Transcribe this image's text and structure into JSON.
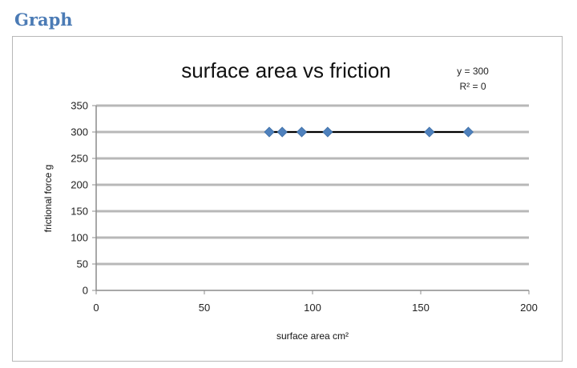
{
  "page": {
    "heading": "Graph"
  },
  "chart_data": {
    "type": "scatter",
    "title": "surface area vs friction",
    "xlabel": "surface area cm²",
    "ylabel": "frictional force g",
    "xlim": [
      0,
      200
    ],
    "ylim": [
      0,
      350
    ],
    "xticks": [
      0,
      50,
      100,
      150,
      200
    ],
    "yticks": [
      0,
      50,
      100,
      150,
      200,
      250,
      300,
      350
    ],
    "grid": "horizontal",
    "series": [
      {
        "x": [
          80,
          86,
          95,
          107,
          154,
          172
        ],
        "y": [
          300,
          300,
          300,
          300,
          300,
          300
        ],
        "color": "#4f81bd",
        "marker": "diamond"
      }
    ],
    "trendline": {
      "type": "linear",
      "x_range": [
        80,
        172
      ],
      "y": 300,
      "color": "#000000",
      "equation": "y = 300",
      "r_squared": "R² = 0"
    }
  }
}
